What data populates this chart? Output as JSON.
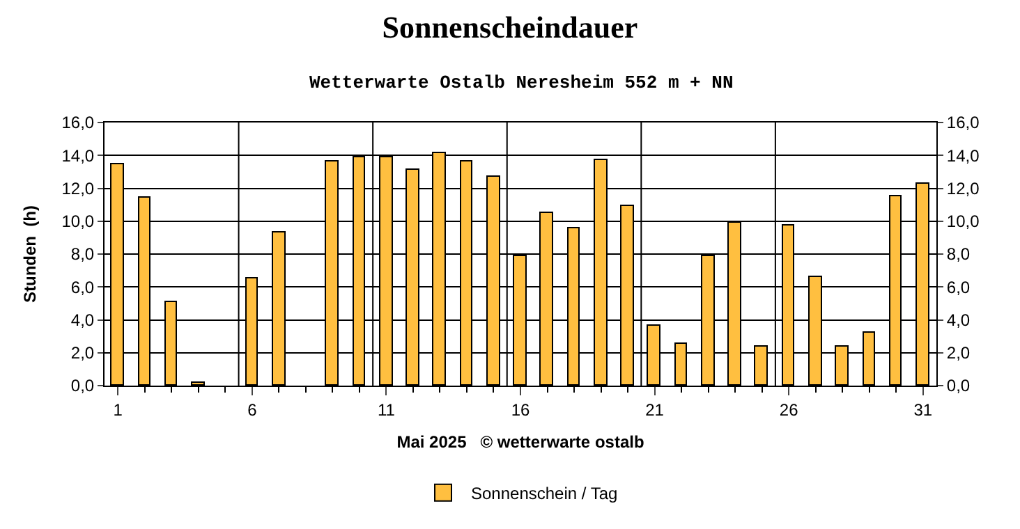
{
  "chart_data": {
    "type": "bar",
    "title": "Sonnenscheindauer",
    "subtitle": "Wetterwarte Ostalb Neresheim 552 m + NN",
    "xlabel": "Mai 2025   © wetterwarte ostalb",
    "ylabel": "Stunden  (h)",
    "x": [
      1,
      2,
      3,
      4,
      5,
      6,
      7,
      8,
      9,
      10,
      11,
      12,
      13,
      14,
      15,
      16,
      17,
      18,
      19,
      20,
      21,
      22,
      23,
      24,
      25,
      26,
      27,
      28,
      29,
      30,
      31
    ],
    "series": [
      {
        "name": "Sonnenschein / Tag",
        "color": "#ffbf40",
        "values": [
          13.5,
          11.4,
          5.1,
          0.2,
          0,
          6.5,
          9.3,
          0,
          13.6,
          13.9,
          13.9,
          13.1,
          14.1,
          13.6,
          12.7,
          7.9,
          10.5,
          9.6,
          13.7,
          10.9,
          3.6,
          2.5,
          7.9,
          9.9,
          2.4,
          9.7,
          6.6,
          2.4,
          3.2,
          11.5,
          12.3
        ]
      }
    ],
    "xlim": [
      0.5,
      31.5
    ],
    "xticks": [
      1,
      6,
      11,
      16,
      21,
      26,
      31
    ],
    "ylim": [
      0,
      16
    ],
    "yticks": [
      {
        "value": 0,
        "label": "0,0"
      },
      {
        "value": 2,
        "label": "2,0"
      },
      {
        "value": 4,
        "label": "4,0"
      },
      {
        "value": 6,
        "label": "6,0"
      },
      {
        "value": 8,
        "label": "8,0"
      },
      {
        "value": 10,
        "label": "10,0"
      },
      {
        "value": 12,
        "label": "12,0"
      },
      {
        "value": 14,
        "label": "14,0"
      },
      {
        "value": 16,
        "label": "16,0"
      }
    ],
    "y2lim": [
      0,
      16
    ],
    "y2ticks": [
      {
        "value": 0,
        "label": "0,0"
      },
      {
        "value": 2,
        "label": "2,0"
      },
      {
        "value": 4,
        "label": "4,0"
      },
      {
        "value": 6,
        "label": "6,0"
      },
      {
        "value": 8,
        "label": "8,0"
      },
      {
        "value": 10,
        "label": "10,0"
      },
      {
        "value": 12,
        "label": "12,0"
      },
      {
        "value": 14,
        "label": "14,0"
      },
      {
        "value": 16,
        "label": "16,0"
      }
    ],
    "ref_lines": [
      {
        "axis": "x",
        "value": 5.5,
        "color": "#000000"
      },
      {
        "axis": "x",
        "value": 10.5,
        "color": "#000000"
      },
      {
        "axis": "x",
        "value": 15.5,
        "color": "#000000"
      },
      {
        "axis": "x",
        "value": 20.5,
        "color": "#000000"
      },
      {
        "axis": "x",
        "value": 25.5,
        "color": "#000000"
      }
    ],
    "grid": "y",
    "legend": "bottom"
  }
}
